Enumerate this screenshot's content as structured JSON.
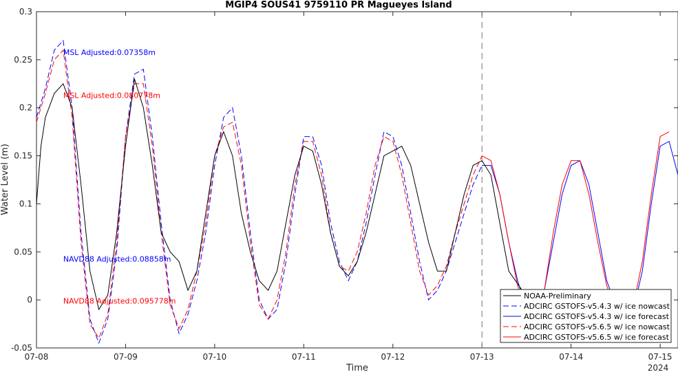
{
  "chart_data": {
    "type": "line",
    "title": "MGIP4 SOUS41 9759110 PR Magueyes Island",
    "xlabel": "Time",
    "ylabel": "Water Level (m)",
    "x_unit": "day",
    "xlim": [
      0,
      7.2
    ],
    "ylim": [
      -0.05,
      0.3
    ],
    "x_ticks": [
      0,
      1,
      2,
      3,
      4,
      5,
      6,
      7
    ],
    "x_tick_labels": [
      "07-08",
      "07-09",
      "07-10",
      "07-11",
      "07-12",
      "07-13",
      "07-14",
      "07-15"
    ],
    "x_year_label": "2024",
    "y_ticks": [
      -0.05,
      0,
      0.05,
      0.1,
      0.15,
      0.2,
      0.25,
      0.3
    ],
    "y_tick_labels": [
      "-0.05",
      "0",
      "0.05",
      "0.1",
      "0.15",
      "0.2",
      "0.25",
      "0.3"
    ],
    "nowcast_forecast_divider_x": 5,
    "grid": false,
    "legend_position": "bottom-right",
    "annotations": [
      {
        "text": "MSL Adjusted:0.07358m",
        "x": 0.3,
        "y": 0.255,
        "color": "#0000ff"
      },
      {
        "text": "MSL Adjusted:0.080778m",
        "x": 0.3,
        "y": 0.21,
        "color": "#ff0000"
      },
      {
        "text": "NAVD88 Adjusted:0.08858m",
        "x": 0.3,
        "y": 0.04,
        "color": "#0000ff"
      },
      {
        "text": "NAVD88 Adjusted:0.095778m",
        "x": 0.3,
        "y": -0.004,
        "color": "#ff0000"
      }
    ],
    "series": [
      {
        "name": "NOAA-Preliminary",
        "color": "#000000",
        "dash": "solid",
        "x": [
          0,
          0.05,
          0.1,
          0.2,
          0.3,
          0.4,
          0.5,
          0.6,
          0.7,
          0.8,
          0.9,
          1.0,
          1.1,
          1.2,
          1.3,
          1.4,
          1.5,
          1.6,
          1.7,
          1.8,
          1.9,
          2.0,
          2.1,
          2.2,
          2.3,
          2.4,
          2.5,
          2.6,
          2.7,
          2.8,
          2.9,
          3.0,
          3.1,
          3.2,
          3.3,
          3.4,
          3.5,
          3.6,
          3.7,
          3.8,
          3.9,
          4.0,
          4.1,
          4.2,
          4.3,
          4.4,
          4.5,
          4.6,
          4.7,
          4.8,
          4.9,
          5.0,
          5.1,
          5.2,
          5.3,
          5.45
        ],
        "y": [
          0.1,
          0.16,
          0.19,
          0.215,
          0.225,
          0.2,
          0.12,
          0.03,
          -0.01,
          0.005,
          0.07,
          0.16,
          0.23,
          0.2,
          0.14,
          0.07,
          0.05,
          0.04,
          0.01,
          0.03,
          0.09,
          0.15,
          0.175,
          0.15,
          0.09,
          0.05,
          0.02,
          0.01,
          0.03,
          0.08,
          0.13,
          0.16,
          0.155,
          0.12,
          0.07,
          0.035,
          0.025,
          0.04,
          0.07,
          0.11,
          0.15,
          0.155,
          0.16,
          0.14,
          0.1,
          0.06,
          0.03,
          0.03,
          0.07,
          0.11,
          0.14,
          0.145,
          0.13,
          0.08,
          0.03,
          0.01
        ]
      },
      {
        "name": "ADCIRC GSTOFS-v5.4.3 w/ ice nowcast",
        "color": "#0000ff",
        "dash": "dash",
        "x": [
          0,
          0.1,
          0.2,
          0.3,
          0.4,
          0.5,
          0.6,
          0.7,
          0.8,
          0.9,
          1.0,
          1.1,
          1.2,
          1.3,
          1.4,
          1.5,
          1.6,
          1.7,
          1.8,
          1.9,
          2.0,
          2.1,
          2.2,
          2.3,
          2.4,
          2.5,
          2.6,
          2.7,
          2.8,
          2.9,
          3.0,
          3.1,
          3.2,
          3.3,
          3.4,
          3.5,
          3.6,
          3.7,
          3.8,
          3.9,
          4.0,
          4.1,
          4.2,
          4.3,
          4.4,
          4.5,
          4.6,
          4.7,
          4.8,
          4.9,
          5.0
        ],
        "y": [
          0.19,
          0.22,
          0.26,
          0.27,
          0.2,
          0.07,
          -0.02,
          -0.045,
          -0.02,
          0.05,
          0.17,
          0.235,
          0.24,
          0.17,
          0.08,
          0.0,
          -0.035,
          -0.015,
          0.02,
          0.07,
          0.14,
          0.19,
          0.2,
          0.15,
          0.07,
          0.0,
          -0.02,
          -0.01,
          0.04,
          0.11,
          0.17,
          0.17,
          0.14,
          0.08,
          0.04,
          0.02,
          0.04,
          0.08,
          0.13,
          0.175,
          0.17,
          0.14,
          0.09,
          0.04,
          0.0,
          0.01,
          0.03,
          0.06,
          0.09,
          0.12,
          0.14
        ]
      },
      {
        "name": "ADCIRC GSTOFS-v5.4.3 w/ ice forecast",
        "color": "#0000ff",
        "dash": "solid",
        "x": [
          5.0,
          5.1,
          5.2,
          5.3,
          5.4,
          5.5,
          5.6,
          5.7,
          5.8,
          5.9,
          6.0,
          6.1,
          6.2,
          6.3,
          6.4,
          6.5,
          6.6,
          6.7,
          6.8,
          6.9,
          7.0,
          7.1,
          7.2
        ],
        "y": [
          0.14,
          0.14,
          0.11,
          0.06,
          0.02,
          -0.01,
          -0.02,
          0.01,
          0.06,
          0.11,
          0.14,
          0.145,
          0.12,
          0.07,
          0.02,
          -0.005,
          -0.02,
          -0.01,
          0.03,
          0.1,
          0.16,
          0.165,
          0.13
        ]
      },
      {
        "name": "ADCIRC GSTOFS-v5.6.5 w/ ice nowcast",
        "color": "#ff0000",
        "dash": "dash",
        "x": [
          0,
          0.1,
          0.2,
          0.3,
          0.4,
          0.5,
          0.6,
          0.7,
          0.8,
          0.9,
          1.0,
          1.1,
          1.2,
          1.3,
          1.4,
          1.5,
          1.6,
          1.7,
          1.8,
          1.9,
          2.0,
          2.1,
          2.2,
          2.3,
          2.4,
          2.5,
          2.6,
          2.7,
          2.8,
          2.9,
          3.0,
          3.1,
          3.2,
          3.3,
          3.4,
          3.5,
          3.6,
          3.7,
          3.8,
          3.9,
          4.0,
          4.1,
          4.2,
          4.3,
          4.4,
          4.5,
          4.6,
          4.7,
          4.8,
          4.9,
          5.0
        ],
        "y": [
          0.185,
          0.215,
          0.25,
          0.26,
          0.19,
          0.06,
          -0.025,
          -0.04,
          -0.015,
          0.06,
          0.17,
          0.225,
          0.225,
          0.16,
          0.07,
          -0.005,
          -0.03,
          -0.01,
          0.03,
          0.08,
          0.15,
          0.18,
          0.185,
          0.14,
          0.06,
          -0.005,
          -0.02,
          0.0,
          0.05,
          0.12,
          0.165,
          0.165,
          0.13,
          0.07,
          0.035,
          0.03,
          0.05,
          0.09,
          0.14,
          0.17,
          0.165,
          0.13,
          0.08,
          0.03,
          0.005,
          0.015,
          0.035,
          0.07,
          0.1,
          0.13,
          0.15
        ]
      },
      {
        "name": "ADCIRC GSTOFS-v5.6.5 w/ ice forecast",
        "color": "#ff0000",
        "dash": "solid",
        "x": [
          5.0,
          5.1,
          5.2,
          5.3,
          5.4,
          5.5,
          5.6,
          5.7,
          5.8,
          5.9,
          6.0,
          6.1,
          6.2,
          6.3,
          6.4,
          6.5,
          6.6,
          6.7,
          6.8,
          6.9,
          7.0,
          7.1
        ],
        "y": [
          0.15,
          0.145,
          0.11,
          0.06,
          0.015,
          -0.015,
          -0.02,
          0.01,
          0.07,
          0.12,
          0.145,
          0.145,
          0.11,
          0.06,
          0.015,
          -0.01,
          -0.02,
          -0.005,
          0.04,
          0.11,
          0.17,
          0.175
        ]
      }
    ]
  }
}
